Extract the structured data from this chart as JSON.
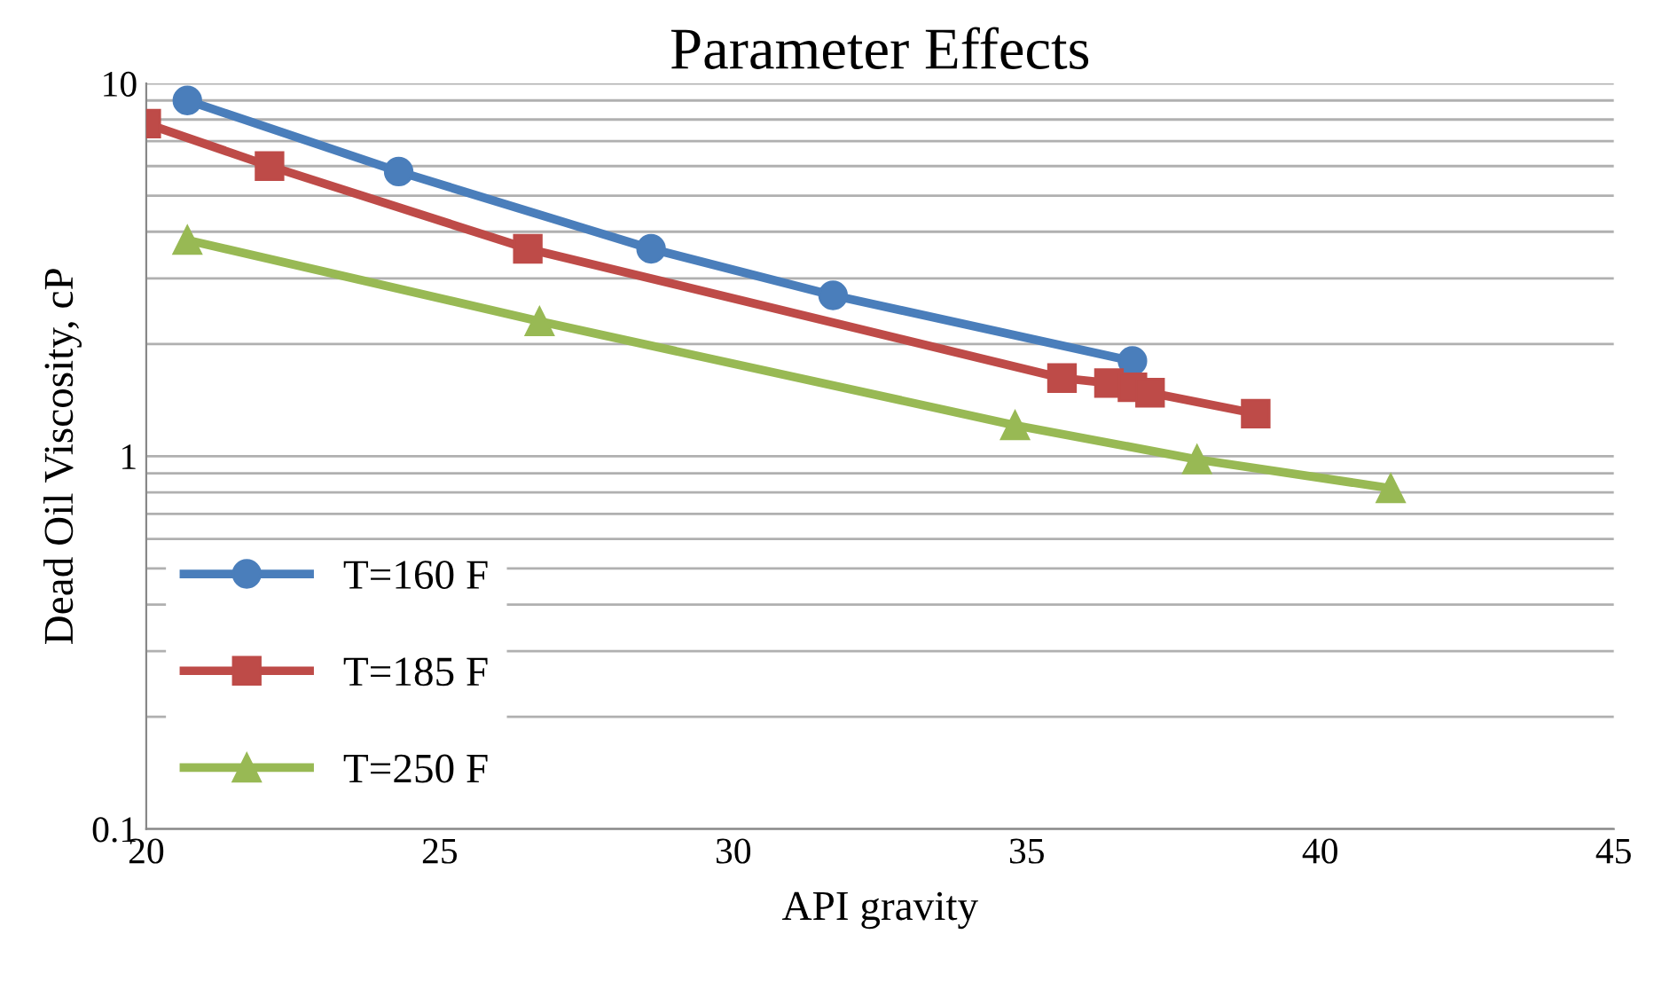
{
  "chart_data": {
    "type": "line",
    "title": "Parameter Effects",
    "xlabel": "API gravity",
    "ylabel": "Dead Oil Viscosity, cP",
    "log": "y",
    "grid": "y",
    "legend": "bottom left",
    "line_style": "solid",
    "xlim": [
      20,
      45
    ],
    "xticks": [
      20,
      25,
      30,
      35,
      40,
      45
    ],
    "ylim": [
      0.1,
      10
    ],
    "yticks": [
      0.1,
      {
        "value": 0.2,
        "label": null
      },
      {
        "value": 0.3,
        "label": null
      },
      {
        "value": 0.4,
        "label": null
      },
      {
        "value": 0.5,
        "label": null
      },
      {
        "value": 0.6,
        "label": null
      },
      {
        "value": 0.7,
        "label": null
      },
      {
        "value": 0.8,
        "label": null
      },
      {
        "value": 0.9,
        "label": null
      },
      1,
      {
        "value": 2,
        "label": null
      },
      {
        "value": 3,
        "label": null
      },
      {
        "value": 4,
        "label": null
      },
      {
        "value": 5,
        "label": null
      },
      {
        "value": 6,
        "label": null
      },
      {
        "value": 7,
        "label": null
      },
      {
        "value": 8,
        "label": null
      },
      {
        "value": 9,
        "label": null
      },
      10
    ],
    "series": [
      {
        "name": "T=160 F",
        "color": "#4a7ebb",
        "marker": "circle",
        "x": [
          20.7,
          24.3,
          28.6,
          31.7,
          36.8
        ],
        "values": [
          9.0,
          5.8,
          3.6,
          2.7,
          1.8
        ]
      },
      {
        "name": "T=185 F",
        "color": "#be4b48",
        "marker": "square",
        "x": [
          20.0,
          22.1,
          26.5,
          35.6,
          36.4,
          36.8,
          37.1,
          38.9
        ],
        "values": [
          7.8,
          6.0,
          3.6,
          1.62,
          1.57,
          1.53,
          1.48,
          1.3
        ]
      },
      {
        "name": "T=250 F",
        "color": "#98b954",
        "marker": "triangle",
        "x": [
          20.7,
          26.7,
          34.8,
          37.9,
          41.2
        ],
        "values": [
          3.8,
          2.3,
          1.21,
          0.98,
          0.82
        ]
      }
    ]
  }
}
